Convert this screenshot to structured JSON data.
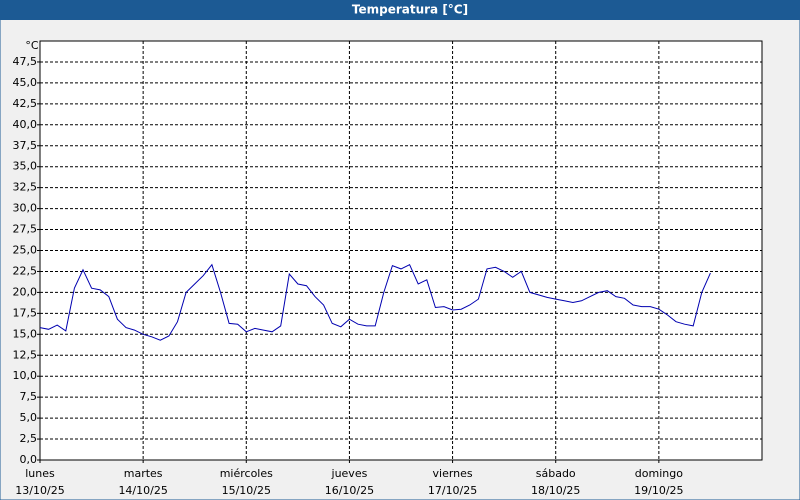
{
  "chart_data": {
    "type": "line",
    "title": "Temperatura [°C]",
    "y_unit": "°C",
    "x": [
      "2025-10-13T00:00",
      "2025-10-13T02:00",
      "2025-10-13T04:00",
      "2025-10-13T06:00",
      "2025-10-13T08:00",
      "2025-10-13T10:00",
      "2025-10-13T12:00",
      "2025-10-13T14:00",
      "2025-10-13T16:00",
      "2025-10-13T18:00",
      "2025-10-13T20:00",
      "2025-10-13T22:00",
      "2025-10-14T00:00",
      "2025-10-14T02:00",
      "2025-10-14T04:00",
      "2025-10-14T06:00",
      "2025-10-14T08:00",
      "2025-10-14T10:00",
      "2025-10-14T12:00",
      "2025-10-14T14:00",
      "2025-10-14T16:00",
      "2025-10-14T18:00",
      "2025-10-14T20:00",
      "2025-10-14T22:00",
      "2025-10-15T00:00",
      "2025-10-15T02:00",
      "2025-10-15T04:00",
      "2025-10-15T06:00",
      "2025-10-15T08:00",
      "2025-10-15T10:00",
      "2025-10-15T12:00",
      "2025-10-15T14:00",
      "2025-10-15T16:00",
      "2025-10-15T18:00",
      "2025-10-15T20:00",
      "2025-10-15T22:00",
      "2025-10-16T00:00",
      "2025-10-16T02:00",
      "2025-10-16T04:00",
      "2025-10-16T06:00",
      "2025-10-16T08:00",
      "2025-10-16T10:00",
      "2025-10-16T12:00",
      "2025-10-16T14:00",
      "2025-10-16T16:00",
      "2025-10-16T18:00",
      "2025-10-16T20:00",
      "2025-10-16T22:00",
      "2025-10-17T00:00",
      "2025-10-17T02:00",
      "2025-10-17T04:00",
      "2025-10-17T06:00",
      "2025-10-17T08:00",
      "2025-10-17T10:00",
      "2025-10-17T12:00",
      "2025-10-17T14:00",
      "2025-10-17T16:00",
      "2025-10-17T18:00",
      "2025-10-17T20:00",
      "2025-10-17T22:00",
      "2025-10-18T00:00",
      "2025-10-18T02:00",
      "2025-10-18T04:00",
      "2025-10-18T06:00",
      "2025-10-18T08:00",
      "2025-10-18T10:00",
      "2025-10-18T12:00",
      "2025-10-18T14:00",
      "2025-10-18T16:00",
      "2025-10-18T18:00",
      "2025-10-18T20:00",
      "2025-10-18T22:00",
      "2025-10-19T00:00",
      "2025-10-19T02:00",
      "2025-10-19T04:00",
      "2025-10-19T06:00",
      "2025-10-19T08:00",
      "2025-10-19T10:00",
      "2025-10-19T12:00"
    ],
    "series": [
      {
        "name": "Temperatura",
        "color": "#0000b0",
        "values": [
          15.8,
          15.6,
          16.1,
          15.4,
          20.5,
          22.7,
          20.5,
          20.3,
          19.5,
          16.8,
          15.8,
          15.5,
          15.0,
          14.7,
          14.3,
          14.8,
          16.5,
          20.0,
          21.0,
          22.0,
          23.3,
          20.0,
          16.3,
          16.2,
          15.3,
          15.7,
          15.5,
          15.3,
          16.0,
          22.2,
          21.0,
          20.8,
          19.5,
          18.5,
          16.3,
          15.9,
          16.8,
          16.2,
          16.0,
          16.0,
          20.0,
          23.2,
          22.8,
          23.3,
          21.0,
          21.5,
          18.2,
          18.3,
          17.9,
          18.0,
          18.5,
          19.2,
          22.8,
          23.0,
          22.5,
          21.8,
          22.5,
          20.0,
          19.7,
          19.4,
          19.2,
          19.0,
          18.8,
          19.0,
          19.5,
          20.0,
          20.2,
          19.5,
          19.3,
          18.5,
          18.3,
          18.3,
          18.0,
          17.3,
          16.5,
          16.2,
          16.0,
          20.0,
          22.3
        ]
      }
    ],
    "xlim": [
      "2025-10-13T00:00",
      "2025-10-20T00:00"
    ],
    "xticks": [
      {
        "value": "2025-10-13T00:00",
        "label": [
          "lunes",
          "13/10/25"
        ]
      },
      {
        "value": "2025-10-14T00:00",
        "label": [
          "martes",
          "14/10/25"
        ]
      },
      {
        "value": "2025-10-15T00:00",
        "label": [
          "miércoles",
          "15/10/25"
        ]
      },
      {
        "value": "2025-10-16T00:00",
        "label": [
          "jueves",
          "16/10/25"
        ]
      },
      {
        "value": "2025-10-17T00:00",
        "label": [
          "viernes",
          "17/10/25"
        ]
      },
      {
        "value": "2025-10-18T00:00",
        "label": [
          "sábado",
          "18/10/25"
        ]
      },
      {
        "value": "2025-10-19T00:00",
        "label": [
          "domingo",
          "19/10/25"
        ]
      }
    ],
    "ylim": [
      0,
      50
    ],
    "yticks": [
      {
        "value": 0,
        "label": "0,0"
      },
      {
        "value": 2.5,
        "label": "2,5"
      },
      {
        "value": 5,
        "label": "5,0"
      },
      {
        "value": 7.5,
        "label": "7,5"
      },
      {
        "value": 10,
        "label": "10,0"
      },
      {
        "value": 12.5,
        "label": "12,5"
      },
      {
        "value": 15,
        "label": "15,0"
      },
      {
        "value": 17.5,
        "label": "17,5"
      },
      {
        "value": 20,
        "label": "20,0"
      },
      {
        "value": 22.5,
        "label": "22,5"
      },
      {
        "value": 25,
        "label": "25,0"
      },
      {
        "value": 27.5,
        "label": "27,5"
      },
      {
        "value": 30,
        "label": "30,0"
      },
      {
        "value": 32.5,
        "label": "32,5"
      },
      {
        "value": 35,
        "label": "35,0"
      },
      {
        "value": 37.5,
        "label": "37,5"
      },
      {
        "value": 40,
        "label": "40,0"
      },
      {
        "value": 42.5,
        "label": "42,5"
      },
      {
        "value": 45,
        "label": "45,0"
      },
      {
        "value": 47.5,
        "label": "47,5"
      }
    ],
    "grid": true
  }
}
